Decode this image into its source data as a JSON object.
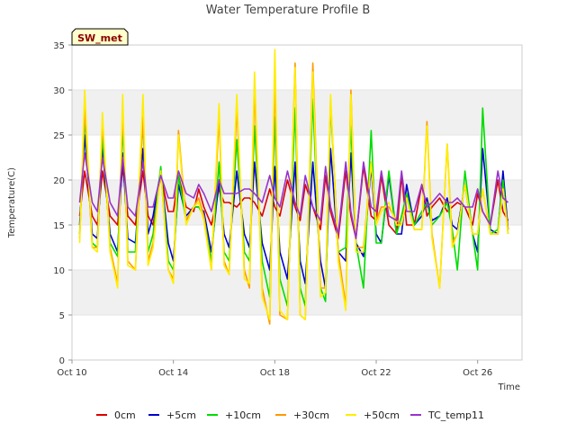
{
  "chart_data": {
    "type": "line",
    "title": "Water Temperature Profile B",
    "xlabel": "Time",
    "ylabel": "Temperature(C)",
    "badge": "SW_met",
    "ylim": [
      0,
      35
    ],
    "yticks": [
      0,
      5,
      10,
      15,
      20,
      25,
      30,
      35
    ],
    "xlim": [
      "Oct 10",
      "Oct 27.75"
    ],
    "xticks": [
      {
        "day": 10,
        "label": "Oct 10"
      },
      {
        "day": 14,
        "label": "Oct 14"
      },
      {
        "day": 18,
        "label": "Oct 18"
      },
      {
        "day": 22,
        "label": "Oct 22"
      },
      {
        "day": 26,
        "label": "Oct 26"
      }
    ],
    "grid": true,
    "legend_position": "bottom",
    "x_unit": "day of October",
    "x": [
      10.3,
      10.5,
      10.8,
      11.0,
      11.2,
      11.5,
      11.8,
      12.0,
      12.2,
      12.5,
      12.8,
      13.0,
      13.2,
      13.5,
      13.8,
      14.0,
      14.2,
      14.5,
      14.8,
      15.0,
      15.2,
      15.5,
      15.8,
      16.0,
      16.2,
      16.5,
      16.8,
      17.0,
      17.2,
      17.5,
      17.8,
      18.0,
      18.2,
      18.5,
      18.8,
      19.0,
      19.2,
      19.5,
      19.8,
      20.0,
      20.2,
      20.5,
      20.8,
      21.0,
      21.2,
      21.5,
      21.8,
      22.0,
      22.2,
      22.5,
      22.8,
      23.0,
      23.2,
      23.5,
      23.8,
      24.0,
      24.2,
      24.5,
      24.8,
      25.0,
      25.2,
      25.5,
      25.8,
      26.0,
      26.2,
      26.5,
      26.8,
      27.0,
      27.2
    ],
    "series": [
      {
        "name": "0cm",
        "color": "#dd0000",
        "values": [
          16.0,
          21.0,
          16.0,
          15.0,
          21.0,
          16.0,
          15.0,
          21.5,
          16.0,
          15.0,
          21.0,
          16.0,
          15.0,
          20.5,
          16.5,
          16.5,
          20.5,
          17.0,
          16.5,
          19.0,
          17.0,
          15.0,
          19.0,
          17.5,
          17.5,
          17.0,
          18.0,
          18.0,
          17.5,
          16.0,
          19.0,
          17.0,
          16.0,
          20.0,
          17.0,
          15.5,
          19.5,
          17.0,
          14.5,
          20.5,
          16.5,
          13.5,
          21.0,
          16.0,
          13.5,
          21.5,
          16.0,
          15.5,
          20.5,
          15.0,
          14.0,
          20.5,
          15.0,
          15.0,
          19.5,
          16.0,
          17.0,
          18.0,
          16.5,
          17.0,
          17.5,
          17.0,
          15.0,
          18.5,
          16.5,
          15.0,
          20.0,
          16.5,
          15.5
        ]
      },
      {
        "name": "+5cm",
        "color": "#0000cc",
        "values": [
          15.0,
          25.0,
          14.0,
          13.5,
          23.5,
          14.0,
          12.0,
          23.0,
          13.5,
          13.0,
          23.5,
          14.0,
          16.0,
          21.0,
          13.0,
          11.0,
          19.5,
          16.0,
          17.0,
          17.0,
          16.5,
          12.0,
          20.0,
          14.0,
          12.5,
          21.0,
          14.0,
          12.5,
          22.0,
          13.0,
          10.0,
          21.5,
          12.0,
          9.0,
          22.0,
          11.0,
          8.5,
          22.0,
          11.0,
          8.0,
          23.5,
          12.0,
          11.0,
          23.0,
          13.0,
          11.5,
          21.5,
          14.0,
          13.0,
          20.5,
          14.0,
          14.0,
          19.5,
          15.0,
          16.0,
          18.0,
          15.5,
          16.0,
          18.0,
          15.0,
          14.5,
          19.5,
          14.0,
          12.0,
          23.5,
          14.5,
          14.0,
          21.0,
          14.5
        ]
      },
      {
        "name": "+10cm",
        "color": "#00dd00",
        "values": [
          14.0,
          27.0,
          13.0,
          12.5,
          25.0,
          13.0,
          11.5,
          26.0,
          12.0,
          12.0,
          26.5,
          12.0,
          14.0,
          21.5,
          11.0,
          10.0,
          20.5,
          15.5,
          17.0,
          17.0,
          16.0,
          11.0,
          22.0,
          12.0,
          11.0,
          24.5,
          12.0,
          11.0,
          26.0,
          11.0,
          7.0,
          27.0,
          9.0,
          6.0,
          28.0,
          8.0,
          6.0,
          29.0,
          8.0,
          6.5,
          28.5,
          12.0,
          12.5,
          26.0,
          13.0,
          8.0,
          25.5,
          13.0,
          13.0,
          21.0,
          14.0,
          16.0,
          18.5,
          15.0,
          16.5,
          17.5,
          15.0,
          16.0,
          17.5,
          14.5,
          10.0,
          21.0,
          14.0,
          10.0,
          28.0,
          14.0,
          14.5,
          20.0,
          14.0
        ]
      },
      {
        "name": "+30cm",
        "color": "#ff9900",
        "values": [
          13.5,
          28.0,
          12.5,
          12.5,
          26.5,
          12.5,
          8.5,
          28.0,
          11.0,
          10.0,
          27.0,
          11.0,
          13.0,
          21.0,
          10.0,
          9.0,
          25.5,
          15.5,
          17.0,
          18.0,
          16.0,
          10.0,
          27.0,
          11.0,
          9.5,
          28.0,
          10.0,
          8.0,
          30.0,
          8.0,
          4.0,
          31.5,
          5.0,
          4.5,
          33.0,
          5.0,
          4.5,
          33.0,
          8.0,
          8.0,
          29.0,
          12.0,
          6.0,
          30.0,
          12.5,
          12.5,
          22.0,
          15.5,
          17.0,
          17.0,
          15.5,
          15.0,
          18.0,
          14.5,
          14.5,
          26.5,
          14.0,
          8.0,
          24.0,
          13.0,
          14.0,
          19.5,
          14.0,
          14.0,
          19.0,
          14.0,
          14.0,
          19.0,
          14.5
        ]
      },
      {
        "name": "+50cm",
        "color": "#ffee00",
        "values": [
          13.0,
          30.0,
          12.5,
          12.0,
          27.5,
          12.0,
          8.0,
          29.5,
          10.5,
          10.0,
          29.5,
          10.5,
          12.5,
          21.0,
          10.0,
          8.5,
          25.0,
          15.0,
          17.0,
          17.5,
          15.5,
          10.0,
          28.5,
          10.5,
          9.5,
          29.5,
          9.0,
          8.5,
          32.0,
          7.0,
          4.5,
          34.5,
          5.5,
          4.5,
          32.5,
          5.0,
          4.5,
          32.0,
          7.0,
          7.5,
          29.5,
          11.0,
          5.5,
          29.5,
          12.0,
          12.0,
          22.0,
          15.0,
          16.5,
          17.5,
          15.0,
          15.0,
          18.0,
          14.5,
          14.5,
          26.0,
          13.5,
          8.0,
          24.0,
          12.5,
          14.0,
          19.5,
          14.0,
          14.0,
          19.0,
          14.0,
          14.0,
          19.0,
          14.0
        ]
      },
      {
        "name": "TC_temp11",
        "color": "#9933cc",
        "values": [
          17.5,
          23.0,
          17.5,
          16.5,
          22.5,
          17.5,
          16.0,
          22.5,
          17.0,
          16.0,
          22.0,
          17.0,
          17.0,
          20.5,
          18.0,
          18.0,
          21.0,
          18.5,
          18.0,
          19.5,
          18.5,
          16.5,
          20.0,
          18.5,
          18.5,
          18.5,
          19.0,
          19.0,
          18.5,
          17.5,
          20.5,
          18.0,
          17.0,
          21.0,
          17.5,
          16.0,
          20.5,
          17.0,
          15.5,
          21.5,
          17.0,
          14.0,
          22.0,
          16.5,
          13.5,
          22.0,
          17.0,
          16.5,
          21.0,
          16.0,
          15.5,
          21.0,
          16.5,
          16.5,
          19.5,
          17.0,
          17.5,
          18.5,
          17.5,
          17.5,
          18.0,
          17.0,
          17.0,
          19.0,
          16.5,
          15.0,
          21.0,
          18.0,
          17.5
        ]
      }
    ]
  }
}
